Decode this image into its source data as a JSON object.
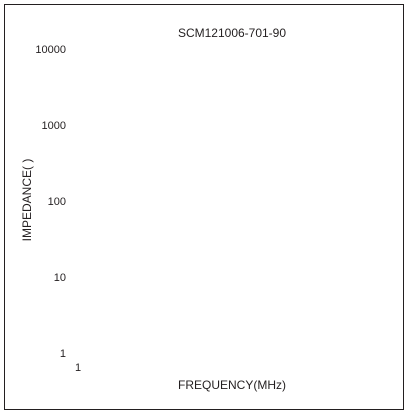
{
  "chart_data": {
    "type": "line",
    "title": "SCM121006-701-90",
    "xlabel": "FREQUENCY(MHz)",
    "ylabel": "IMPEDANCE(  )",
    "y_scale": "log",
    "ylim": [
      1,
      10000
    ],
    "yticks": [
      "10000",
      "1000",
      "100",
      "10",
      "1"
    ],
    "xticks": [
      "1"
    ],
    "grid": false,
    "series": []
  }
}
